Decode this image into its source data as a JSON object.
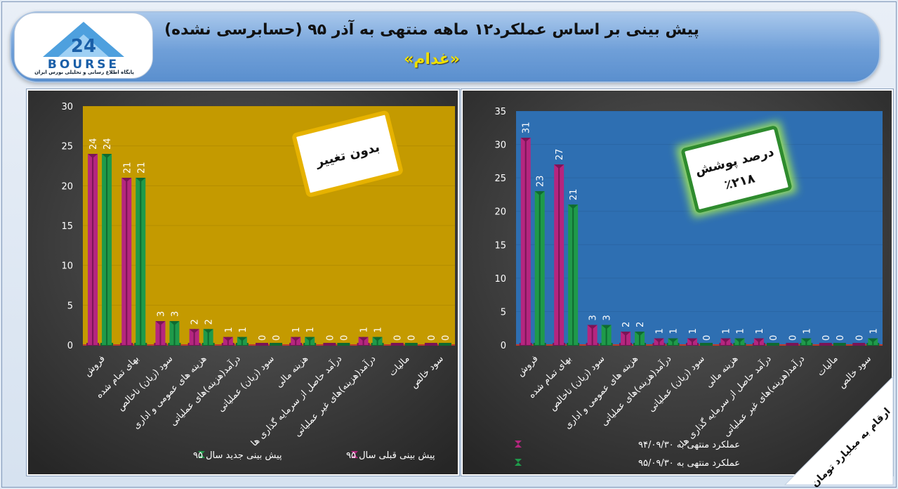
{
  "header": {
    "title": "پیش بینی بر اساس عملکرد۱۲ ماهه منتهی به آذر ۹۵ (حسابرسی نشده)",
    "subtitle": "«غدام»"
  },
  "logo": {
    "wordmark": "BOURSE",
    "number": "24",
    "caption": "پایگاه اطلاع رسانی و تحلیلی بورس ایران"
  },
  "corner_note": "ارقام به میلیارد تومان",
  "colors": {
    "magenta": "#b5267f",
    "green": "#1f9a4a",
    "left_plot_bg": "#c49a00",
    "right_plot_bg": "#2e6fb2",
    "panel_bg": "#4a4a4a"
  },
  "chart_data": [
    {
      "type": "bar",
      "callout": "بدون تغییر",
      "categories": [
        "فروش",
        "بهای تمام شده",
        "سود (زیان) ناخالص",
        "هزینه های عمومی و اداری",
        "درآمد(هزینه)های عملیاتی",
        "سود (زیان) عملیاتی",
        "هزینه مالی",
        "درآمد حاصل از سرمایه گذاری ها",
        "درآمد(هزینه)های غیر عملیاتی",
        "مالیات",
        "سود خالص"
      ],
      "series": [
        {
          "name": "پیش بینی قبلی سال ۹۵",
          "color": "#b5267f",
          "values": [
            24,
            21,
            3,
            2,
            1,
            0,
            1,
            0,
            1,
            0,
            0
          ]
        },
        {
          "name": "پیش بینی جدید سال ۹۵",
          "color": "#1f9a4a",
          "values": [
            24,
            21,
            3,
            2,
            1,
            0,
            1,
            0,
            1,
            0,
            0
          ]
        }
      ],
      "ylim": [
        0,
        30
      ],
      "yticks": [
        0,
        5,
        10,
        15,
        20,
        25,
        30
      ],
      "legend": "bottom"
    },
    {
      "type": "bar",
      "callout_lines": [
        "درصد پوشش",
        "٪۲۱۸"
      ],
      "categories": [
        "فروش",
        "بهای تمام شده",
        "سود (زیان) ناخالص",
        "هزینه های عمومی و اداری",
        "درآمد(هزینه)های عملیاتی",
        "سود (زیان) عملیاتی",
        "هزینه مالی",
        "درآمد حاصل از سرمایه گذاری ها",
        "درآمد(هزینه)های غیر عملیاتی",
        "مالیات",
        "سود خالص"
      ],
      "series": [
        {
          "name": "عملکرد منتهی به ۹۴/۰۹/۳۰",
          "color": "#b5267f",
          "values": [
            31,
            27,
            3,
            2,
            1,
            1,
            1,
            1,
            0,
            0,
            0
          ]
        },
        {
          "name": "عملکرد منتهی به ۹۵/۰۹/۳۰",
          "color": "#1f9a4a",
          "values": [
            23,
            21,
            3,
            2,
            1,
            0,
            1,
            0,
            1,
            0,
            1
          ]
        }
      ],
      "ylim": [
        0,
        35
      ],
      "yticks": [
        0,
        5,
        10,
        15,
        20,
        25,
        30,
        35
      ],
      "legend": "bottom-left"
    }
  ]
}
